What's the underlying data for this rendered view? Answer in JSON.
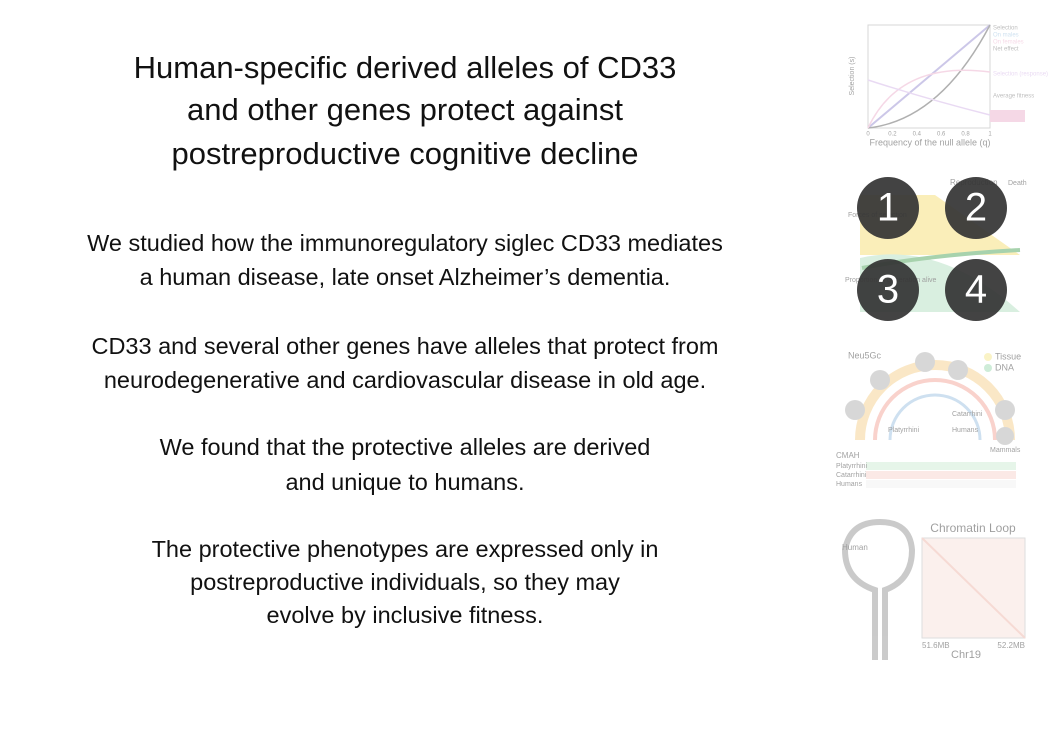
{
  "title": [
    "Human-specific derived alleles of CD33",
    "and other genes protect against",
    "postreproductive cognitive decline"
  ],
  "paragraphs": [
    [
      "We studied how the immunoregulatory siglec CD33 mediates",
      "a human disease, late onset Alzheimer’s dementia."
    ],
    [
      "CD33 and several other genes have alleles that protect from",
      "neurodegenerative and cardiovascular disease in old age."
    ],
    [
      "We found that the protective alleles are derived",
      "and unique to humans."
    ],
    [
      "The protective phenotypes are expressed only in",
      "postreproductive individuals, so they may",
      "evolve by inclusive fitness."
    ]
  ],
  "figures": {
    "selection_plot": {
      "y_label": "Selection (s)",
      "x_label": "Frequency of the null allele (q)",
      "xticks": [
        0,
        0.2,
        0.4,
        0.6,
        0.8,
        1
      ],
      "legend": [
        "Selection",
        "On males",
        "On females",
        "Net effect",
        "Selection (response)",
        "Average fitness"
      ]
    },
    "life_stages": {
      "badges": [
        "1",
        "2",
        "3",
        "4"
      ],
      "labels": [
        "Reproduction",
        "Death",
        "Forces of selection",
        "Proportion of generation alive"
      ]
    },
    "phylogeny": {
      "labels": [
        "Neu5Gc",
        "Tissue",
        "DNA",
        "Catarrhini",
        "Platyrrhini",
        "Humans",
        "Mammals",
        "CMAH"
      ],
      "rows": [
        "Platyrrhini",
        "Catarrhini",
        "Humans"
      ]
    },
    "chromatin": {
      "title": "Chromatin Loop",
      "label": "Human",
      "start": "51.6MB",
      "end": "52.2MB",
      "axis": "Chr19"
    }
  }
}
